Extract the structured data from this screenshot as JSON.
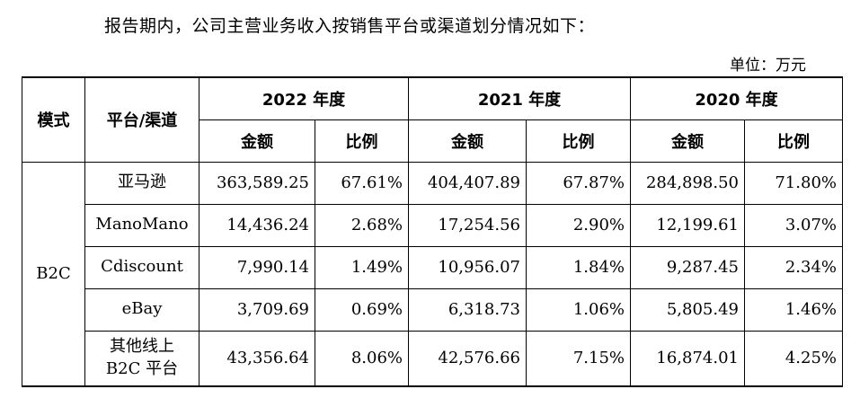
{
  "intro_text": "报告期内，公司主营业务收入按销售平台或渠道划分情况如下：",
  "unit_label": "单位：万元",
  "table": {
    "col_mode": "模式",
    "col_platform": "平台/渠道",
    "years": [
      "2022 年度",
      "2021 年度",
      "2020 年度"
    ],
    "sub_amount": "金额",
    "sub_ratio": "比例",
    "mode_value": "B2C",
    "rows": [
      {
        "platform": "亚马逊",
        "v": [
          "363,589.25",
          "67.61%",
          "404,407.89",
          "67.87%",
          "284,898.50",
          "71.80%"
        ]
      },
      {
        "platform": "ManoMano",
        "v": [
          "14,436.24",
          "2.68%",
          "17,254.56",
          "2.90%",
          "12,199.61",
          "3.07%"
        ]
      },
      {
        "platform": "Cdiscount",
        "v": [
          "7,990.14",
          "1.49%",
          "10,956.07",
          "1.84%",
          "9,287.45",
          "2.34%"
        ]
      },
      {
        "platform": "eBay",
        "v": [
          "3,709.69",
          "0.69%",
          "6,318.73",
          "1.06%",
          "5,805.49",
          "1.46%"
        ]
      },
      {
        "platform_line1": "其他线上",
        "platform_line2": "B2C 平台",
        "v": [
          "43,356.64",
          "8.06%",
          "42,576.66",
          "7.15%",
          "16,874.01",
          "4.25%"
        ]
      }
    ]
  }
}
